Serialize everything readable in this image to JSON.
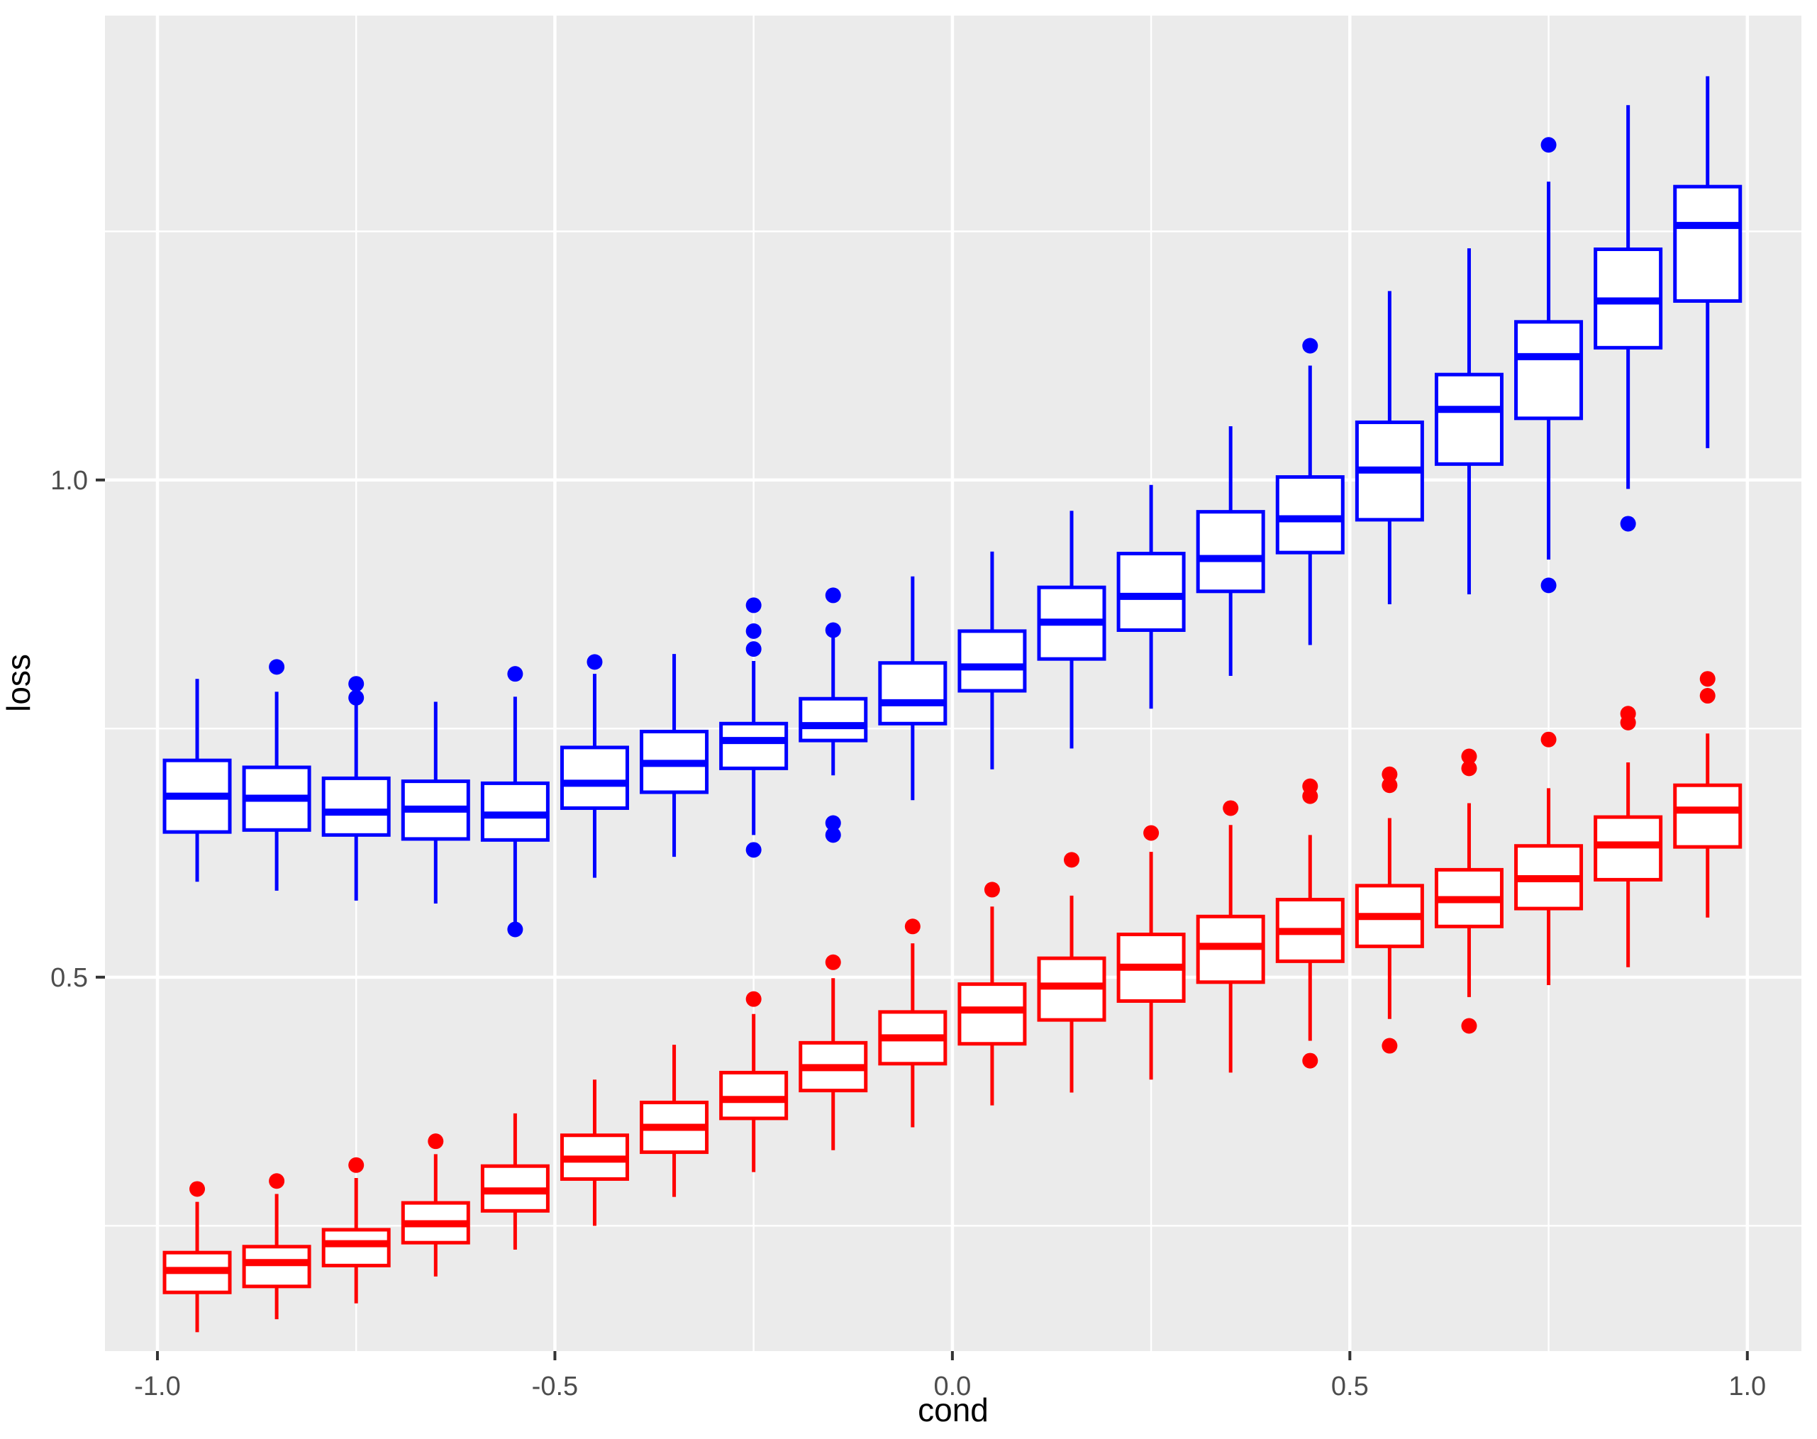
{
  "chart_data": {
    "type": "boxplot",
    "title": "",
    "xlabel": "cond",
    "ylabel": "loss",
    "x_ticks": [
      -1.0,
      -0.5,
      0.0,
      0.5,
      1.0
    ],
    "x_tick_labels": [
      "-1.0",
      "-0.5",
      "0.0",
      "0.5",
      "1.0"
    ],
    "y_ticks": [
      0.5,
      1.0
    ],
    "y_tick_labels": [
      "0.5",
      "1.0"
    ],
    "x_minor_gridlines": [
      -0.75,
      -0.25,
      0.25,
      0.75
    ],
    "y_minor_gridlines": [
      0.25,
      0.75,
      1.25
    ],
    "xlim": [
      -1.066,
      1.068
    ],
    "ylim": [
      0.124,
      1.467
    ],
    "grid": true,
    "legend_position": "none",
    "panel_background": "#EBEBEB",
    "gridline_color": "#FFFFFF",
    "tick_color": "#333333",
    "tick_label_color": "#4d4d4d",
    "box_fill": "#FFFFFF",
    "series": [
      {
        "name": "blue",
        "color": "#0000FF",
        "boxes": [
          {
            "cond": -0.95,
            "lo": 0.596,
            "q1": 0.646,
            "med": 0.682,
            "q3": 0.718,
            "hi": 0.8,
            "out": []
          },
          {
            "cond": -0.85,
            "lo": 0.587,
            "q1": 0.648,
            "med": 0.68,
            "q3": 0.711,
            "hi": 0.787,
            "out": [
              0.812
            ]
          },
          {
            "cond": -0.75,
            "lo": 0.577,
            "q1": 0.643,
            "med": 0.666,
            "q3": 0.7,
            "hi": 0.776,
            "out": [
              0.781,
              0.795
            ]
          },
          {
            "cond": -0.65,
            "lo": 0.574,
            "q1": 0.639,
            "med": 0.669,
            "q3": 0.697,
            "hi": 0.777,
            "out": []
          },
          {
            "cond": -0.55,
            "lo": 0.553,
            "q1": 0.638,
            "med": 0.663,
            "q3": 0.695,
            "hi": 0.782,
            "out": [
              0.805,
              0.548
            ]
          },
          {
            "cond": -0.45,
            "lo": 0.6,
            "q1": 0.67,
            "med": 0.695,
            "q3": 0.731,
            "hi": 0.805,
            "out": [
              0.817
            ]
          },
          {
            "cond": -0.35,
            "lo": 0.621,
            "q1": 0.686,
            "med": 0.715,
            "q3": 0.747,
            "hi": 0.825,
            "out": []
          },
          {
            "cond": -0.25,
            "lo": 0.643,
            "q1": 0.71,
            "med": 0.738,
            "q3": 0.755,
            "hi": 0.818,
            "out": [
              0.83,
              0.848,
              0.874,
              0.628
            ]
          },
          {
            "cond": -0.15,
            "lo": 0.703,
            "q1": 0.738,
            "med": 0.753,
            "q3": 0.78,
            "hi": 0.842,
            "out": [
              0.884,
              0.849,
              0.655,
              0.643
            ]
          },
          {
            "cond": -0.05,
            "lo": 0.678,
            "q1": 0.755,
            "med": 0.776,
            "q3": 0.816,
            "hi": 0.903,
            "out": []
          },
          {
            "cond": 0.05,
            "lo": 0.709,
            "q1": 0.788,
            "med": 0.812,
            "q3": 0.848,
            "hi": 0.928,
            "out": []
          },
          {
            "cond": 0.15,
            "lo": 0.73,
            "q1": 0.82,
            "med": 0.857,
            "q3": 0.892,
            "hi": 0.969,
            "out": []
          },
          {
            "cond": 0.25,
            "lo": 0.77,
            "q1": 0.849,
            "med": 0.883,
            "q3": 0.926,
            "hi": 0.995,
            "out": []
          },
          {
            "cond": 0.35,
            "lo": 0.803,
            "q1": 0.888,
            "med": 0.921,
            "q3": 0.968,
            "hi": 1.054,
            "out": []
          },
          {
            "cond": 0.45,
            "lo": 0.834,
            "q1": 0.927,
            "med": 0.961,
            "q3": 1.003,
            "hi": 1.115,
            "out": [
              1.135
            ]
          },
          {
            "cond": 0.55,
            "lo": 0.875,
            "q1": 0.96,
            "med": 1.01,
            "q3": 1.058,
            "hi": 1.19,
            "out": []
          },
          {
            "cond": 0.65,
            "lo": 0.885,
            "q1": 1.016,
            "med": 1.071,
            "q3": 1.106,
            "hi": 1.233,
            "out": []
          },
          {
            "cond": 0.75,
            "lo": 0.92,
            "q1": 1.062,
            "med": 1.124,
            "q3": 1.159,
            "hi": 1.3,
            "out": [
              1.337,
              0.894
            ]
          },
          {
            "cond": 0.85,
            "lo": 0.991,
            "q1": 1.133,
            "med": 1.18,
            "q3": 1.232,
            "hi": 1.377,
            "out": [
              0.956
            ]
          },
          {
            "cond": 0.95,
            "lo": 1.032,
            "q1": 1.18,
            "med": 1.256,
            "q3": 1.295,
            "hi": 1.406,
            "out": []
          }
        ]
      },
      {
        "name": "red",
        "color": "#FF0000",
        "boxes": [
          {
            "cond": -0.95,
            "lo": 0.143,
            "q1": 0.183,
            "med": 0.205,
            "q3": 0.223,
            "hi": 0.274,
            "out": [
              0.287
            ]
          },
          {
            "cond": -0.85,
            "lo": 0.156,
            "q1": 0.189,
            "med": 0.213,
            "q3": 0.229,
            "hi": 0.282,
            "out": [
              0.295
            ]
          },
          {
            "cond": -0.75,
            "lo": 0.172,
            "q1": 0.21,
            "med": 0.232,
            "q3": 0.246,
            "hi": 0.298,
            "out": [
              0.311
            ]
          },
          {
            "cond": -0.65,
            "lo": 0.199,
            "q1": 0.233,
            "med": 0.252,
            "q3": 0.273,
            "hi": 0.322,
            "out": [
              0.335
            ]
          },
          {
            "cond": -0.55,
            "lo": 0.226,
            "q1": 0.265,
            "med": 0.285,
            "q3": 0.31,
            "hi": 0.363,
            "out": []
          },
          {
            "cond": -0.45,
            "lo": 0.25,
            "q1": 0.297,
            "med": 0.317,
            "q3": 0.341,
            "hi": 0.397,
            "out": []
          },
          {
            "cond": -0.35,
            "lo": 0.279,
            "q1": 0.324,
            "med": 0.349,
            "q3": 0.374,
            "hi": 0.432,
            "out": []
          },
          {
            "cond": -0.25,
            "lo": 0.304,
            "q1": 0.358,
            "med": 0.377,
            "q3": 0.404,
            "hi": 0.463,
            "out": [
              0.478
            ]
          },
          {
            "cond": -0.15,
            "lo": 0.326,
            "q1": 0.386,
            "med": 0.409,
            "q3": 0.434,
            "hi": 0.499,
            "out": [
              0.515
            ]
          },
          {
            "cond": -0.05,
            "lo": 0.349,
            "q1": 0.413,
            "med": 0.439,
            "q3": 0.465,
            "hi": 0.534,
            "out": [
              0.551
            ]
          },
          {
            "cond": 0.05,
            "lo": 0.371,
            "q1": 0.433,
            "med": 0.467,
            "q3": 0.493,
            "hi": 0.571,
            "out": [
              0.588
            ]
          },
          {
            "cond": 0.15,
            "lo": 0.384,
            "q1": 0.457,
            "med": 0.491,
            "q3": 0.519,
            "hi": 0.582,
            "out": [
              0.618
            ]
          },
          {
            "cond": 0.25,
            "lo": 0.397,
            "q1": 0.476,
            "med": 0.51,
            "q3": 0.543,
            "hi": 0.626,
            "out": [
              0.645
            ]
          },
          {
            "cond": 0.35,
            "lo": 0.404,
            "q1": 0.495,
            "med": 0.531,
            "q3": 0.561,
            "hi": 0.653,
            "out": [
              0.67
            ]
          },
          {
            "cond": 0.45,
            "lo": 0.436,
            "q1": 0.516,
            "med": 0.546,
            "q3": 0.578,
            "hi": 0.643,
            "out": [
              0.692,
              0.682,
              0.416
            ]
          },
          {
            "cond": 0.55,
            "lo": 0.458,
            "q1": 0.531,
            "med": 0.561,
            "q3": 0.592,
            "hi": 0.66,
            "out": [
              0.704,
              0.693,
              0.431
            ]
          },
          {
            "cond": 0.65,
            "lo": 0.48,
            "q1": 0.551,
            "med": 0.578,
            "q3": 0.608,
            "hi": 0.675,
            "out": [
              0.722,
              0.71,
              0.451
            ]
          },
          {
            "cond": 0.75,
            "lo": 0.492,
            "q1": 0.569,
            "med": 0.599,
            "q3": 0.632,
            "hi": 0.69,
            "out": [
              0.739
            ]
          },
          {
            "cond": 0.85,
            "lo": 0.51,
            "q1": 0.598,
            "med": 0.633,
            "q3": 0.661,
            "hi": 0.716,
            "out": [
              0.765,
              0.756
            ]
          },
          {
            "cond": 0.95,
            "lo": 0.56,
            "q1": 0.631,
            "med": 0.668,
            "q3": 0.693,
            "hi": 0.745,
            "out": [
              0.8,
              0.783
            ]
          }
        ]
      }
    ]
  }
}
